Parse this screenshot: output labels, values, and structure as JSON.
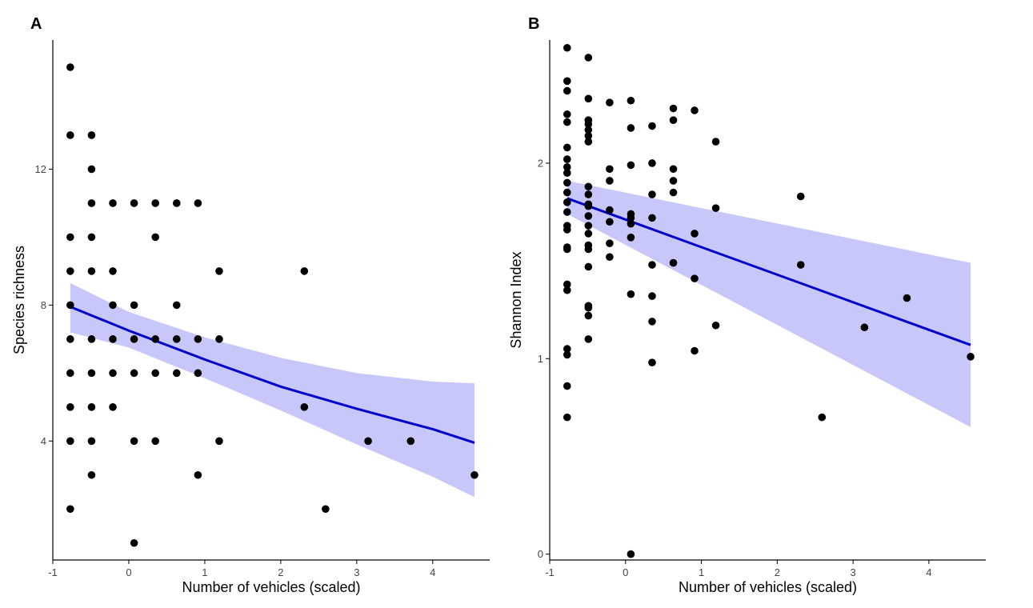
{
  "chart_data": [
    {
      "panel_label": "A",
      "type": "scatter",
      "xlabel": "Number of vehicles (scaled)",
      "ylabel": "Species richness",
      "xlim": [
        -1,
        4.75
      ],
      "ylim": [
        0.5,
        15.8
      ],
      "xticks": [
        -1,
        0,
        1,
        2,
        3,
        4
      ],
      "yticks": [
        4,
        8,
        12
      ],
      "grid": false,
      "colors": {
        "points": "#000000",
        "line": "#0000cc",
        "band": "#9999f5"
      },
      "points": [
        [
          -0.77,
          15
        ],
        [
          -0.77,
          13
        ],
        [
          -0.77,
          10
        ],
        [
          -0.77,
          9
        ],
        [
          -0.77,
          8
        ],
        [
          -0.77,
          7
        ],
        [
          -0.77,
          6
        ],
        [
          -0.77,
          5
        ],
        [
          -0.77,
          4
        ],
        [
          -0.77,
          2
        ],
        [
          -0.49,
          13
        ],
        [
          -0.49,
          12
        ],
        [
          -0.49,
          11
        ],
        [
          -0.49,
          10
        ],
        [
          -0.49,
          9
        ],
        [
          -0.49,
          7
        ],
        [
          -0.49,
          6
        ],
        [
          -0.49,
          5
        ],
        [
          -0.49,
          4
        ],
        [
          -0.49,
          3
        ],
        [
          -0.21,
          11
        ],
        [
          -0.21,
          9
        ],
        [
          -0.21,
          8
        ],
        [
          -0.21,
          7
        ],
        [
          -0.21,
          6
        ],
        [
          -0.21,
          5
        ],
        [
          0.07,
          11
        ],
        [
          0.07,
          8
        ],
        [
          0.07,
          7
        ],
        [
          0.07,
          6
        ],
        [
          0.07,
          4
        ],
        [
          0.07,
          1
        ],
        [
          0.35,
          11
        ],
        [
          0.35,
          10
        ],
        [
          0.35,
          7
        ],
        [
          0.35,
          6
        ],
        [
          0.35,
          4
        ],
        [
          0.63,
          11
        ],
        [
          0.63,
          8
        ],
        [
          0.63,
          7
        ],
        [
          0.63,
          6
        ],
        [
          0.91,
          11
        ],
        [
          0.91,
          7
        ],
        [
          0.91,
          6
        ],
        [
          0.91,
          3
        ],
        [
          1.19,
          9
        ],
        [
          1.19,
          7
        ],
        [
          1.19,
          4
        ],
        [
          2.31,
          9
        ],
        [
          2.31,
          5
        ],
        [
          2.59,
          2
        ],
        [
          3.15,
          4
        ],
        [
          3.71,
          4
        ],
        [
          4.55,
          3
        ]
      ],
      "fit": {
        "x": [
          -0.77,
          0,
          1,
          2,
          3,
          4,
          4.55
        ],
        "y": [
          7.95,
          7.25,
          6.4,
          5.6,
          4.95,
          4.35,
          3.95
        ]
      },
      "ci_lower": [
        7.2,
        6.75,
        5.85,
        4.9,
        3.9,
        2.95,
        2.35
      ],
      "ci_upper": [
        8.65,
        7.8,
        7.05,
        6.45,
        6.0,
        5.75,
        5.7
      ]
    },
    {
      "panel_label": "B",
      "type": "scatter",
      "xlabel": "Number of vehicles (scaled)",
      "ylabel": "Shannon Index",
      "xlim": [
        -1,
        4.75
      ],
      "ylim": [
        -0.03,
        2.63
      ],
      "xticks": [
        -1,
        0,
        1,
        2,
        3,
        4
      ],
      "yticks": [
        0,
        1,
        2
      ],
      "grid": false,
      "colors": {
        "points": "#000000",
        "line": "#0000cc",
        "band": "#9999f5"
      },
      "points": [
        [
          -0.77,
          2.59
        ],
        [
          -0.77,
          2.42
        ],
        [
          -0.77,
          2.37
        ],
        [
          -0.77,
          2.25
        ],
        [
          -0.77,
          2.21
        ],
        [
          -0.77,
          2.08
        ],
        [
          -0.77,
          2.02
        ],
        [
          -0.77,
          1.98
        ],
        [
          -0.77,
          1.95
        ],
        [
          -0.77,
          1.9
        ],
        [
          -0.77,
          1.85
        ],
        [
          -0.77,
          1.8
        ],
        [
          -0.77,
          1.75
        ],
        [
          -0.77,
          1.68
        ],
        [
          -0.77,
          1.66
        ],
        [
          -0.77,
          1.57
        ],
        [
          -0.77,
          1.56
        ],
        [
          -0.77,
          1.38
        ],
        [
          -0.77,
          1.35
        ],
        [
          -0.77,
          1.05
        ],
        [
          -0.77,
          1.02
        ],
        [
          -0.77,
          0.86
        ],
        [
          -0.77,
          0.7
        ],
        [
          -0.49,
          2.54
        ],
        [
          -0.49,
          2.33
        ],
        [
          -0.49,
          2.22
        ],
        [
          -0.49,
          2.2
        ],
        [
          -0.49,
          2.17
        ],
        [
          -0.49,
          2.14
        ],
        [
          -0.49,
          2.11
        ],
        [
          -0.49,
          1.88
        ],
        [
          -0.49,
          1.84
        ],
        [
          -0.49,
          1.79
        ],
        [
          -0.49,
          1.78
        ],
        [
          -0.49,
          1.73
        ],
        [
          -0.49,
          1.68
        ],
        [
          -0.49,
          1.64
        ],
        [
          -0.49,
          1.58
        ],
        [
          -0.49,
          1.56
        ],
        [
          -0.49,
          1.47
        ],
        [
          -0.49,
          1.27
        ],
        [
          -0.49,
          1.26
        ],
        [
          -0.49,
          1.22
        ],
        [
          -0.49,
          1.1
        ],
        [
          -0.21,
          2.31
        ],
        [
          -0.21,
          1.97
        ],
        [
          -0.21,
          1.91
        ],
        [
          -0.21,
          1.76
        ],
        [
          -0.21,
          1.7
        ],
        [
          -0.21,
          1.59
        ],
        [
          -0.21,
          1.52
        ],
        [
          0.07,
          2.32
        ],
        [
          0.07,
          2.18
        ],
        [
          0.07,
          1.99
        ],
        [
          0.07,
          1.74
        ],
        [
          0.07,
          1.72
        ],
        [
          0.07,
          1.69
        ],
        [
          0.07,
          1.62
        ],
        [
          0.07,
          1.33
        ],
        [
          0.07,
          0.0
        ],
        [
          0.35,
          2.19
        ],
        [
          0.35,
          2.0
        ],
        [
          0.35,
          1.84
        ],
        [
          0.35,
          1.72
        ],
        [
          0.35,
          1.48
        ],
        [
          0.35,
          1.32
        ],
        [
          0.35,
          1.19
        ],
        [
          0.35,
          0.98
        ],
        [
          0.63,
          2.28
        ],
        [
          0.63,
          2.22
        ],
        [
          0.63,
          1.97
        ],
        [
          0.63,
          1.91
        ],
        [
          0.63,
          1.85
        ],
        [
          0.63,
          1.49
        ],
        [
          0.91,
          2.27
        ],
        [
          0.91,
          1.64
        ],
        [
          0.91,
          1.41
        ],
        [
          0.91,
          1.04
        ],
        [
          1.19,
          2.11
        ],
        [
          1.19,
          1.77
        ],
        [
          1.19,
          1.17
        ],
        [
          2.31,
          1.83
        ],
        [
          2.31,
          1.48
        ],
        [
          2.59,
          0.7
        ],
        [
          3.15,
          1.16
        ],
        [
          3.71,
          1.31
        ],
        [
          4.55,
          1.01
        ]
      ],
      "fit": {
        "x": [
          -0.77,
          4.55
        ],
        "y": [
          1.82,
          1.07
        ]
      },
      "ci_lower": [
        1.74,
        0.65
      ],
      "ci_upper": [
        1.91,
        1.49
      ]
    }
  ]
}
